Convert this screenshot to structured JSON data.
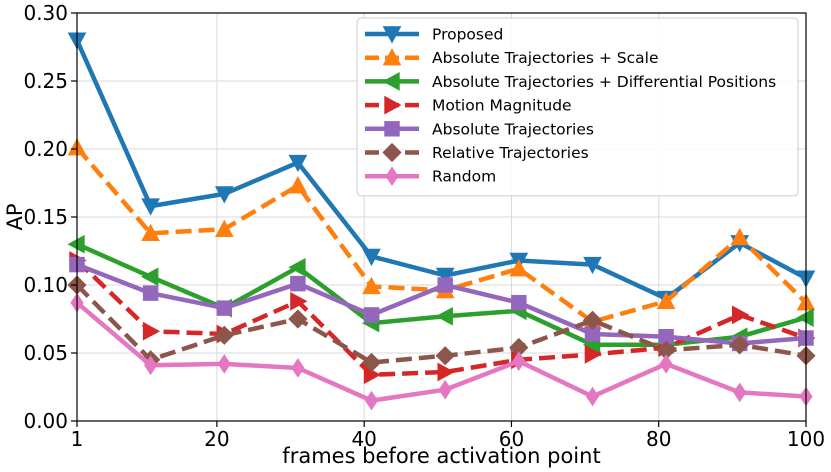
{
  "chart_data": {
    "type": "line",
    "title": "",
    "xlabel": "frames before activation point",
    "ylabel": "AP",
    "xlim": [
      1,
      100
    ],
    "ylim": [
      0.0,
      0.3
    ],
    "x": [
      1,
      11,
      21,
      31,
      41,
      51,
      61,
      71,
      81,
      91,
      100
    ],
    "xticks": [
      1,
      20,
      40,
      60,
      80,
      100
    ],
    "xtick_labels": [
      "1",
      "20",
      "40",
      "60",
      "80",
      "100"
    ],
    "yticks": [
      0.0,
      0.05,
      0.1,
      0.15,
      0.2,
      0.25,
      0.3
    ],
    "ytick_labels": [
      "0.00",
      "0.05",
      "0.10",
      "0.15",
      "0.20",
      "0.25",
      "0.30"
    ],
    "grid": true,
    "legend_position": "top-right",
    "series": [
      {
        "name": "Proposed",
        "color": "#1f77b4",
        "dash": "solid",
        "marker": "triangle-down",
        "values": [
          0.28,
          0.158,
          0.167,
          0.19,
          0.121,
          0.107,
          0.118,
          0.115,
          0.09,
          0.131,
          0.105
        ]
      },
      {
        "name": "Absolute Trajectories + Scale",
        "color": "#ff7f0e",
        "dash": "dashed",
        "marker": "triangle-up",
        "values": [
          0.201,
          0.138,
          0.141,
          0.173,
          0.099,
          0.096,
          0.112,
          0.073,
          0.088,
          0.135,
          0.087
        ]
      },
      {
        "name": "Absolute Trajectories + Differential Positions",
        "color": "#2ca02c",
        "dash": "solid",
        "marker": "triangle-left",
        "values": [
          0.13,
          0.106,
          0.083,
          0.113,
          0.072,
          0.077,
          0.081,
          0.056,
          0.056,
          0.062,
          0.076
        ]
      },
      {
        "name": "Motion Magnitude",
        "color": "#d62728",
        "dash": "dashed",
        "marker": "triangle-right",
        "values": [
          0.118,
          0.066,
          0.064,
          0.088,
          0.034,
          0.036,
          0.045,
          0.049,
          0.054,
          0.078,
          0.061
        ]
      },
      {
        "name": "Absolute Trajectories",
        "color": "#9467bd",
        "dash": "solid",
        "marker": "square",
        "values": [
          0.115,
          0.094,
          0.083,
          0.101,
          0.078,
          0.1,
          0.087,
          0.064,
          0.062,
          0.057,
          0.061
        ]
      },
      {
        "name": "Relative Trajectories",
        "color": "#8c564b",
        "dash": "dashed",
        "marker": "diamond",
        "values": [
          0.1,
          0.045,
          0.063,
          0.075,
          0.043,
          0.048,
          0.054,
          0.074,
          0.052,
          0.056,
          0.048
        ]
      },
      {
        "name": "Random",
        "color": "#e377c2",
        "dash": "solid",
        "marker": "thin-diamond",
        "values": [
          0.087,
          0.041,
          0.042,
          0.039,
          0.015,
          0.023,
          0.044,
          0.018,
          0.042,
          0.021,
          0.018
        ]
      }
    ]
  }
}
